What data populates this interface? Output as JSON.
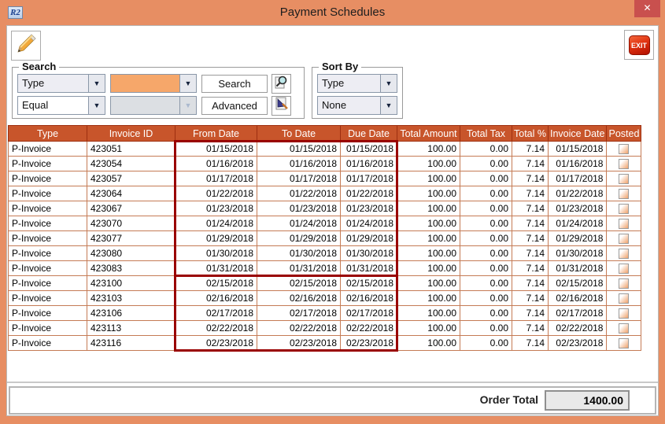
{
  "window": {
    "title": "Payment Schedules",
    "app_icon_text": "R2",
    "close_glyph": "✕"
  },
  "toolbar": {
    "exit_label": "EXIT"
  },
  "search": {
    "legend": "Search",
    "field_combo_value": "Type",
    "value_combo_value": "",
    "operator_combo_value": "Equal",
    "operator_value_combo_value": "",
    "search_button_label": "Search",
    "advanced_button_label": "Advanced"
  },
  "sort_by": {
    "legend": "Sort By",
    "primary_combo_value": "Type",
    "secondary_combo_value": "None"
  },
  "table": {
    "columns": [
      "Type",
      "Invoice ID",
      "From Date",
      "To Date",
      "Due Date",
      "Total Amount",
      "Total Tax",
      "Total %",
      "Invoice Date",
      "Posted"
    ],
    "rows": [
      {
        "type": "P-Invoice",
        "invoice_id": "423051",
        "from_date": "01/15/2018",
        "to_date": "01/15/2018",
        "due_date": "01/15/2018",
        "total_amount": "100.00",
        "total_tax": "0.00",
        "total_pct": "7.14",
        "invoice_date": "01/15/2018",
        "posted": false
      },
      {
        "type": "P-Invoice",
        "invoice_id": "423054",
        "from_date": "01/16/2018",
        "to_date": "01/16/2018",
        "due_date": "01/16/2018",
        "total_amount": "100.00",
        "total_tax": "0.00",
        "total_pct": "7.14",
        "invoice_date": "01/16/2018",
        "posted": false
      },
      {
        "type": "P-Invoice",
        "invoice_id": "423057",
        "from_date": "01/17/2018",
        "to_date": "01/17/2018",
        "due_date": "01/17/2018",
        "total_amount": "100.00",
        "total_tax": "0.00",
        "total_pct": "7.14",
        "invoice_date": "01/17/2018",
        "posted": false
      },
      {
        "type": "P-Invoice",
        "invoice_id": "423064",
        "from_date": "01/22/2018",
        "to_date": "01/22/2018",
        "due_date": "01/22/2018",
        "total_amount": "100.00",
        "total_tax": "0.00",
        "total_pct": "7.14",
        "invoice_date": "01/22/2018",
        "posted": false
      },
      {
        "type": "P-Invoice",
        "invoice_id": "423067",
        "from_date": "01/23/2018",
        "to_date": "01/23/2018",
        "due_date": "01/23/2018",
        "total_amount": "100.00",
        "total_tax": "0.00",
        "total_pct": "7.14",
        "invoice_date": "01/23/2018",
        "posted": false
      },
      {
        "type": "P-Invoice",
        "invoice_id": "423070",
        "from_date": "01/24/2018",
        "to_date": "01/24/2018",
        "due_date": "01/24/2018",
        "total_amount": "100.00",
        "total_tax": "0.00",
        "total_pct": "7.14",
        "invoice_date": "01/24/2018",
        "posted": false
      },
      {
        "type": "P-Invoice",
        "invoice_id": "423077",
        "from_date": "01/29/2018",
        "to_date": "01/29/2018",
        "due_date": "01/29/2018",
        "total_amount": "100.00",
        "total_tax": "0.00",
        "total_pct": "7.14",
        "invoice_date": "01/29/2018",
        "posted": false
      },
      {
        "type": "P-Invoice",
        "invoice_id": "423080",
        "from_date": "01/30/2018",
        "to_date": "01/30/2018",
        "due_date": "01/30/2018",
        "total_amount": "100.00",
        "total_tax": "0.00",
        "total_pct": "7.14",
        "invoice_date": "01/30/2018",
        "posted": false
      },
      {
        "type": "P-Invoice",
        "invoice_id": "423083",
        "from_date": "01/31/2018",
        "to_date": "01/31/2018",
        "due_date": "01/31/2018",
        "total_amount": "100.00",
        "total_tax": "0.00",
        "total_pct": "7.14",
        "invoice_date": "01/31/2018",
        "posted": false
      },
      {
        "type": "P-Invoice",
        "invoice_id": "423100",
        "from_date": "02/15/2018",
        "to_date": "02/15/2018",
        "due_date": "02/15/2018",
        "total_amount": "100.00",
        "total_tax": "0.00",
        "total_pct": "7.14",
        "invoice_date": "02/15/2018",
        "posted": false
      },
      {
        "type": "P-Invoice",
        "invoice_id": "423103",
        "from_date": "02/16/2018",
        "to_date": "02/16/2018",
        "due_date": "02/16/2018",
        "total_amount": "100.00",
        "total_tax": "0.00",
        "total_pct": "7.14",
        "invoice_date": "02/16/2018",
        "posted": false
      },
      {
        "type": "P-Invoice",
        "invoice_id": "423106",
        "from_date": "02/17/2018",
        "to_date": "02/17/2018",
        "due_date": "02/17/2018",
        "total_amount": "100.00",
        "total_tax": "0.00",
        "total_pct": "7.14",
        "invoice_date": "02/17/2018",
        "posted": false
      },
      {
        "type": "P-Invoice",
        "invoice_id": "423113",
        "from_date": "02/22/2018",
        "to_date": "02/22/2018",
        "due_date": "02/22/2018",
        "total_amount": "100.00",
        "total_tax": "0.00",
        "total_pct": "7.14",
        "invoice_date": "02/22/2018",
        "posted": false
      },
      {
        "type": "P-Invoice",
        "invoice_id": "423116",
        "from_date": "02/23/2018",
        "to_date": "02/23/2018",
        "due_date": "02/23/2018",
        "total_amount": "100.00",
        "total_tax": "0.00",
        "total_pct": "7.14",
        "invoice_date": "02/23/2018",
        "posted": false
      }
    ],
    "highlight_boxes": [
      {
        "first_row": 0,
        "last_row": 8,
        "first_column": "From Date",
        "last_column": "Due Date",
        "color": "#990000"
      },
      {
        "first_row": 9,
        "last_row": 13,
        "first_column": "From Date",
        "last_column": "Due Date",
        "color": "#990000"
      }
    ]
  },
  "footer": {
    "order_total_label": "Order Total",
    "order_total_value": "1400.00"
  },
  "colors": {
    "window_frame": "#E78E63",
    "table_header_bg": "#C8552B",
    "grid_line": "#C57B55",
    "highlight_box": "#990000",
    "exit_button": "#D42A0C",
    "close_button": "#C9504E"
  }
}
